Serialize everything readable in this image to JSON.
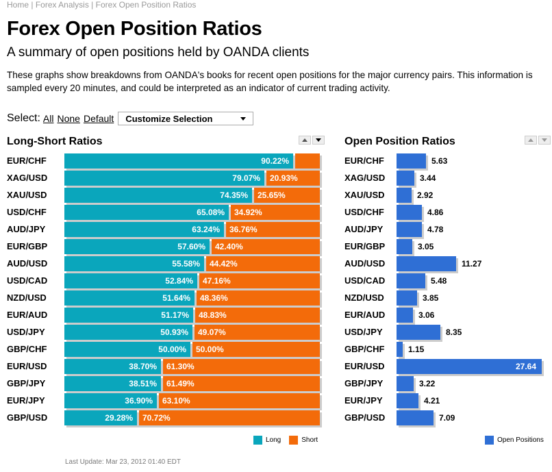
{
  "breadcrumb": {
    "home": "Home",
    "sep1": " | ",
    "forex": "Forex Analysis",
    "sep2": " | ",
    "current": "Forex Open Position Ratios"
  },
  "page": {
    "title": "Forex Open Position Ratios",
    "subtitle": "A summary of open positions held by OANDA clients",
    "description": "These graphs show breakdowns from OANDA's books for recent open positions for the major currency pairs. This information is sampled every 20 minutes, and could be interpreted as an indicator of current trading activity.",
    "last_update": "Last Update: Mar 23, 2012 01:40 EDT"
  },
  "select": {
    "label": "Select:",
    "all": "All",
    "none": "None",
    "default": "Default",
    "customize": "Customize Selection"
  },
  "colors": {
    "long": "#0aa6bc",
    "short": "#f36b0a",
    "open": "#2f6fd5"
  },
  "chart_data": [
    {
      "type": "bar",
      "title": "Long-Short Ratios",
      "orientation": "horizontal",
      "stacked": true,
      "categories": [
        "EUR/CHF",
        "XAG/USD",
        "XAU/USD",
        "USD/CHF",
        "AUD/JPY",
        "EUR/GBP",
        "AUD/USD",
        "USD/CAD",
        "NZD/USD",
        "EUR/AUD",
        "USD/JPY",
        "GBP/CHF",
        "EUR/USD",
        "GBP/JPY",
        "EUR/JPY",
        "GBP/USD"
      ],
      "series": [
        {
          "name": "Long",
          "values": [
            90.22,
            79.07,
            74.35,
            65.08,
            63.24,
            57.6,
            55.58,
            52.84,
            51.64,
            51.17,
            50.93,
            50.0,
            38.7,
            38.51,
            36.9,
            29.28
          ],
          "labels": [
            "90.22%",
            "79.07%",
            "74.35%",
            "65.08%",
            "63.24%",
            "57.60%",
            "55.58%",
            "52.84%",
            "51.64%",
            "51.17%",
            "50.93%",
            "50.00%",
            "38.70%",
            "38.51%",
            "36.90%",
            "29.28%"
          ]
        },
        {
          "name": "Short",
          "values": [
            9.78,
            20.93,
            25.65,
            34.92,
            36.76,
            42.4,
            44.42,
            47.16,
            48.36,
            48.83,
            49.07,
            50.0,
            61.3,
            61.49,
            63.1,
            70.72
          ],
          "labels": [
            "",
            "20.93%",
            "25.65%",
            "34.92%",
            "36.76%",
            "42.40%",
            "44.42%",
            "47.16%",
            "48.36%",
            "48.83%",
            "49.07%",
            "50.00%",
            "61.30%",
            "61.49%",
            "63.10%",
            "70.72%"
          ]
        }
      ],
      "xlim": [
        0,
        100
      ],
      "legend": "bottom-right"
    },
    {
      "type": "bar",
      "title": "Open Position Ratios",
      "orientation": "horizontal",
      "categories": [
        "EUR/CHF",
        "XAG/USD",
        "XAU/USD",
        "USD/CHF",
        "AUD/JPY",
        "EUR/GBP",
        "AUD/USD",
        "USD/CAD",
        "NZD/USD",
        "EUR/AUD",
        "USD/JPY",
        "GBP/CHF",
        "EUR/USD",
        "GBP/JPY",
        "EUR/JPY",
        "GBP/USD"
      ],
      "series": [
        {
          "name": "Open Positions",
          "values": [
            5.63,
            3.44,
            2.92,
            4.86,
            4.78,
            3.05,
            11.27,
            5.48,
            3.85,
            3.06,
            8.35,
            1.15,
            27.64,
            3.22,
            4.21,
            7.09
          ],
          "labels": [
            "5.63",
            "3.44",
            "2.92",
            "4.86",
            "4.78",
            "3.05",
            "11.27",
            "5.48",
            "3.85",
            "3.06",
            "8.35",
            "1.15",
            "27.64",
            "3.22",
            "4.21",
            "7.09"
          ]
        }
      ],
      "xlim": [
        0,
        27.64
      ],
      "legend": "bottom-right"
    }
  ]
}
